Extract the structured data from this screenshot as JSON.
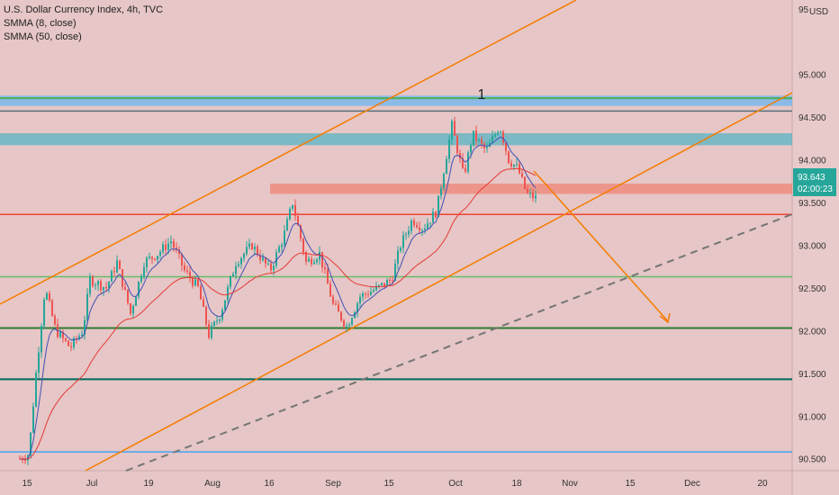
{
  "chart_data": {
    "type": "candlestick",
    "title": "U.S. Dollar Currency Index, 4h, TVC",
    "indicators": [
      "SMMA (8, close)",
      "SMMA (50, close)"
    ],
    "currency": "USD",
    "y_ticks": [
      90.5,
      91.0,
      91.5,
      92.0,
      92.5,
      93.0,
      93.5,
      94.0,
      94.5,
      95.0
    ],
    "y_tick_labels": [
      "90.500",
      "91.000",
      "91.500",
      "92.000",
      "92.500",
      "93.000",
      "93.500",
      "94.000",
      "94.500",
      "95.000"
    ],
    "top_partial_label": "95",
    "x_tick_labels": [
      "15",
      "Jul",
      "19",
      "Aug",
      "16",
      "Sep",
      "15",
      "Oct",
      "18",
      "Nov",
      "15",
      "Dec",
      "20"
    ],
    "ylim": [
      90.36,
      95.87
    ],
    "last_price": "93.643",
    "countdown": "02:00:23",
    "wave_label": "1",
    "colors": {
      "background": "#e6c6c6",
      "up_candle": "#26a69a",
      "down_candle": "#ef5350",
      "smma8": "#3f51b5",
      "smma50": "#e53935",
      "channel": "#f57c00",
      "price_badge": "#26a69a"
    },
    "horizontal_levels": [
      {
        "price": 94.72,
        "color": "#4caf50",
        "kind": "line"
      },
      {
        "price": 94.57,
        "color": "#546e7a",
        "kind": "line"
      },
      {
        "price": 93.36,
        "color": "#f44336",
        "kind": "line"
      },
      {
        "price": 92.63,
        "color": "#66bb6a",
        "kind": "line"
      },
      {
        "price": 92.03,
        "color": "#2e7d32",
        "kind": "line"
      },
      {
        "price": 91.43,
        "color": "#00695c",
        "kind": "line"
      },
      {
        "price": 90.58,
        "color": "#42a5f5",
        "kind": "line"
      }
    ],
    "zones": [
      {
        "from": 94.63,
        "to": 94.75,
        "color": "#64b5f6"
      },
      {
        "from": 94.17,
        "to": 94.31,
        "color": "#4fb3c4"
      },
      {
        "from": 93.6,
        "to": 93.72,
        "color": "#f08070"
      }
    ]
  }
}
